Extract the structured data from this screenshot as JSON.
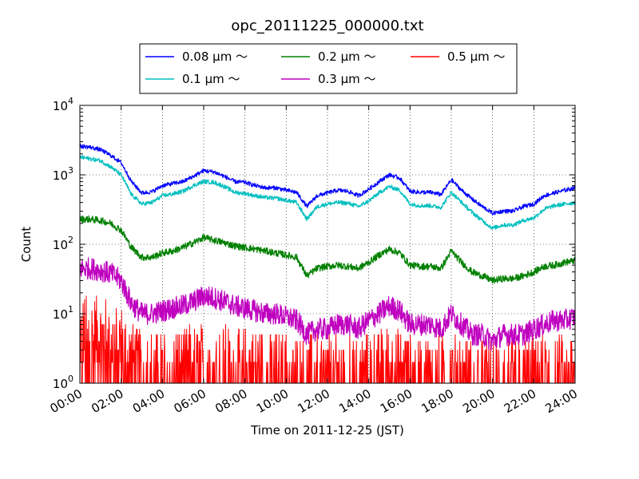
{
  "chart_data": {
    "type": "line",
    "title": "opc_20111225_000000.txt",
    "xlabel": "Time on 2011-12-25 (JST)",
    "ylabel": "Count",
    "yscale": "log",
    "ylim": [
      1,
      10000
    ],
    "xlim": [
      "2011-12-25 00:00",
      "2011-12-26 00:00"
    ],
    "grid": true,
    "legend_position": "top-center",
    "x_ticks": [
      "00:00",
      "02:00",
      "04:00",
      "06:00",
      "08:00",
      "10:00",
      "12:00",
      "14:00",
      "16:00",
      "18:00",
      "20:00",
      "22:00",
      "24:00"
    ],
    "y_ticks": [
      {
        "value": 1,
        "base": "10",
        "exp": "0"
      },
      {
        "value": 10,
        "base": "10",
        "exp": "1"
      },
      {
        "value": 100,
        "base": "10",
        "exp": "2"
      },
      {
        "value": 1000,
        "base": "10",
        "exp": "3"
      },
      {
        "value": 10000,
        "base": "10",
        "exp": "4"
      }
    ],
    "x_hours": [
      0,
      0.5,
      1,
      1.5,
      2,
      2.5,
      3,
      3.5,
      4,
      4.5,
      5,
      5.5,
      6,
      6.5,
      7,
      7.5,
      8,
      8.5,
      9,
      9.5,
      10,
      10.5,
      11,
      11.5,
      12,
      12.5,
      13,
      13.5,
      14,
      14.5,
      15,
      15.5,
      16,
      16.5,
      17,
      17.5,
      18,
      18.5,
      19,
      19.5,
      20,
      20.5,
      21,
      21.5,
      22,
      22.5,
      23,
      23.5,
      24
    ],
    "series": [
      {
        "name": "0.08 μm ～",
        "color": "#0000ff",
        "values": [
          2600,
          2500,
          2300,
          1900,
          1500,
          800,
          550,
          570,
          700,
          750,
          800,
          950,
          1150,
          1100,
          950,
          800,
          780,
          700,
          650,
          650,
          600,
          560,
          350,
          500,
          550,
          600,
          580,
          500,
          620,
          800,
          1000,
          900,
          580,
          560,
          560,
          520,
          850,
          600,
          450,
          350,
          280,
          300,
          300,
          350,
          380,
          500,
          550,
          600,
          650
        ]
      },
      {
        "name": "0.1 μm ～",
        "color": "#00bfbf",
        "values": [
          1800,
          1700,
          1600,
          1300,
          1000,
          520,
          380,
          400,
          500,
          530,
          580,
          700,
          800,
          780,
          680,
          560,
          540,
          500,
          470,
          460,
          430,
          400,
          230,
          350,
          380,
          400,
          390,
          350,
          420,
          550,
          680,
          600,
          380,
          360,
          360,
          340,
          560,
          400,
          290,
          220,
          170,
          190,
          190,
          220,
          240,
          320,
          360,
          380,
          400
        ]
      },
      {
        "name": "0.2 μm ～",
        "color": "#008000",
        "values": [
          230,
          230,
          220,
          200,
          160,
          90,
          65,
          65,
          75,
          80,
          90,
          105,
          125,
          115,
          105,
          95,
          90,
          85,
          80,
          75,
          70,
          65,
          35,
          45,
          48,
          50,
          48,
          45,
          55,
          70,
          85,
          75,
          50,
          48,
          48,
          45,
          80,
          55,
          40,
          35,
          30,
          32,
          32,
          35,
          40,
          48,
          50,
          55,
          58
        ]
      },
      {
        "name": "0.3 μm ～",
        "color": "#bf00bf",
        "values": [
          45,
          45,
          42,
          38,
          30,
          14,
          10,
          10,
          11,
          12,
          13,
          15,
          18,
          17,
          15,
          13,
          12,
          11,
          10,
          10,
          9,
          8,
          5,
          6,
          6,
          7,
          7,
          6,
          8,
          10,
          13,
          11,
          7,
          7,
          7,
          6,
          10,
          7,
          5,
          5,
          4,
          5,
          5,
          5,
          6,
          7,
          8,
          8,
          9
        ]
      },
      {
        "name": "0.5 μm ～",
        "color": "#ff0000",
        "values": [
          5,
          5,
          4.5,
          4,
          3.5,
          2,
          1.5,
          1.5,
          1.5,
          1.6,
          1.6,
          1.8,
          2,
          1.9,
          1.8,
          1.6,
          1.6,
          1.5,
          1.5,
          1.5,
          1.4,
          1.4,
          1.2,
          1.3,
          1.3,
          1.3,
          1.3,
          1.3,
          1.4,
          1.5,
          1.7,
          1.6,
          1.3,
          1.3,
          1.3,
          1.3,
          1.5,
          1.3,
          1.2,
          1.2,
          1.2,
          1.2,
          1.2,
          1.2,
          1.2,
          1.3,
          1.3,
          1.3,
          1.4
        ]
      }
    ]
  }
}
